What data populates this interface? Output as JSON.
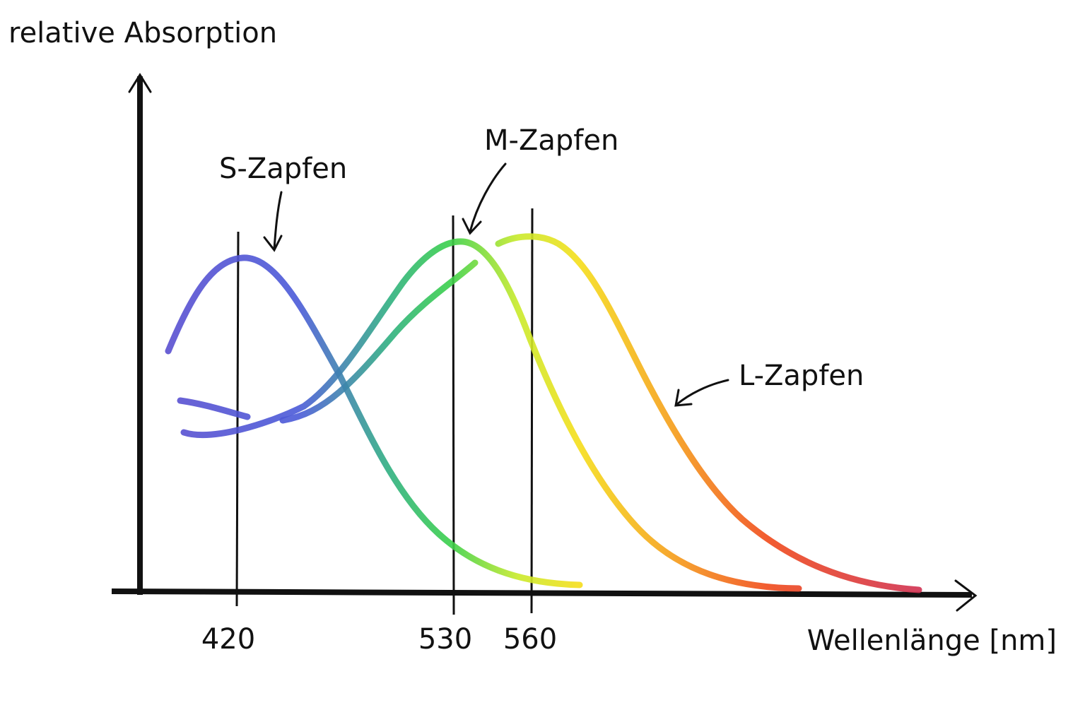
{
  "axes": {
    "y_label": "relative Absorption",
    "x_label": "Wellenlänge [nm]",
    "x_ticks": [
      "420",
      "530",
      "560"
    ]
  },
  "curves": [
    {
      "label": "S-Zapfen"
    },
    {
      "label": "M-Zapfen"
    },
    {
      "label": "L-Zapfen"
    }
  ]
}
